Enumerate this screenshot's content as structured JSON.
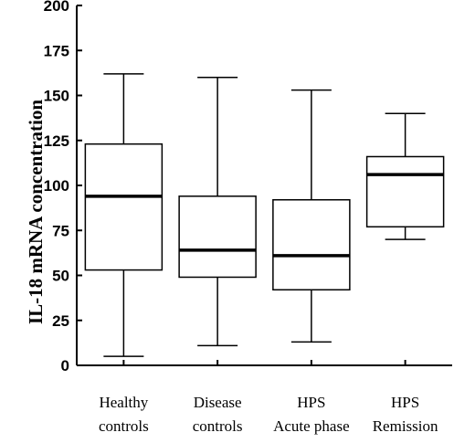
{
  "chart_data": {
    "type": "boxplot",
    "title": "",
    "ylabel": "IL-18 mRNA concentration",
    "xlabel": "",
    "ylim": [
      0,
      200
    ],
    "yticks": [
      "0",
      "25",
      "50",
      "75",
      "100",
      "125",
      "150",
      "175",
      "200"
    ],
    "grid": false,
    "legend": "none",
    "categories": [
      {
        "line1": "Healthy",
        "line2": "controls"
      },
      {
        "line1": "Disease",
        "line2": "controls"
      },
      {
        "line1": "HPS",
        "line2": "Acute phase"
      },
      {
        "line1": "HPS",
        "line2": "Remission"
      }
    ],
    "boxes": [
      {
        "min": 5,
        "q1": 53,
        "median": 94,
        "q3": 123,
        "max": 162
      },
      {
        "min": 11,
        "q1": 49,
        "median": 64,
        "q3": 94,
        "max": 160
      },
      {
        "min": 13,
        "q1": 42,
        "median": 61,
        "q3": 92,
        "max": 153
      },
      {
        "min": 70,
        "q1": 77,
        "median": 106,
        "q3": 116,
        "max": 140
      }
    ]
  }
}
